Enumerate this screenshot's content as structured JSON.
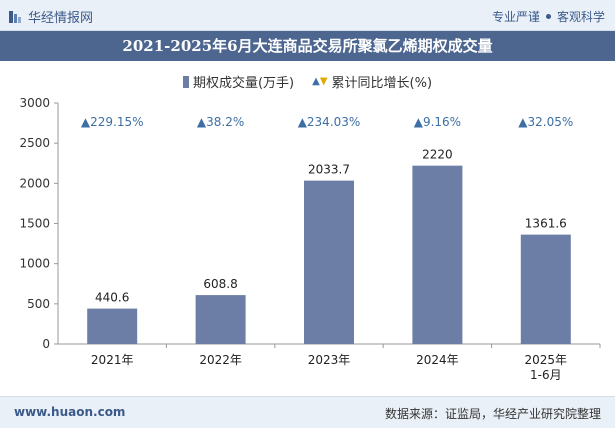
{
  "header": {
    "brand": "华经情报网",
    "slogan_left": "专业严谨",
    "slogan_right": "客观科学"
  },
  "footer": {
    "site": "www.huaon.com",
    "source": "数据来源：证监局，华经产业研究院整理"
  },
  "watermark": "华经产业研究院",
  "colors": {
    "bar": "#6c7ea6",
    "accent": "#3b5a8a",
    "title_bg": "#4c6690",
    "triangle": "#3d6fa5"
  },
  "chart_data": {
    "type": "bar",
    "title": "2021-2025年6月大连商品交易所聚氯乙烯期权成交量",
    "categories": [
      "2021年",
      "2022年",
      "2023年",
      "2024年",
      "2025年\n1-6月"
    ],
    "series": [
      {
        "name": "期权成交量(万手)",
        "values": [
          440.6,
          608.8,
          2033.7,
          2220,
          1361.6
        ]
      }
    ],
    "growth": {
      "name": "累计同比增长(%)",
      "values": [
        "229.15%",
        "38.2%",
        "234.03%",
        "9.16%",
        "32.05%"
      ]
    },
    "value_labels": [
      "440.6",
      "608.8",
      "2033.7",
      "2220",
      "1361.6"
    ],
    "y_ticks": [
      "0",
      "500",
      "1000",
      "1500",
      "2000",
      "2500",
      "3000"
    ],
    "ylim": [
      0,
      3000
    ],
    "xlabel": "",
    "ylabel": ""
  }
}
